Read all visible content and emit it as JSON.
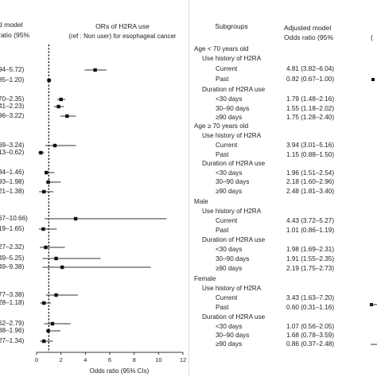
{
  "left_panel": {
    "header_line1": "d model",
    "header_line2": "ratio (95%",
    "ci_fragments": [
      "94–5.72)",
      "85–1.20)",
      "70–2.35)",
      "41–2.23)",
      "96–3.22)",
      "69–3.24)",
      "13–0.62)",
      "84–1.46)",
      "93–1.98)",
      "21–1.38)",
      "67–10.66)",
      "19–1.65)",
      "27–2.32)",
      "49–5.25)",
      "49–9.38)",
      "77–3.38)",
      "28–1.18)",
      "62–2.79)",
      "88–1.96)",
      "27–1.34)"
    ]
  },
  "right_panel": {
    "subgroups_header": "Subgroups",
    "adjusted_header_line1": "Adjusted model",
    "adjusted_header_line2": "Odds ratio (95%",
    "edge_fragment": "(",
    "rows": [
      {
        "label": "Age < 70 years old",
        "or": ""
      },
      {
        "label": "Use history of  H2RA",
        "or": ""
      },
      {
        "label": "Current",
        "or": "4.81 (3.82–6.04)"
      },
      {
        "label": "Past",
        "or": "0.82 (0.67–1.00)"
      },
      {
        "label": "Duration of H2RA use",
        "or": ""
      },
      {
        "label": "<30 days",
        "or": "1.79 (1.48–2.16)"
      },
      {
        "label": "30–90 days",
        "or": "1.55 (1.18–2.02)"
      },
      {
        "label": "≥90 days",
        "or": "1.75 (1.28–2.40)"
      },
      {
        "label": "Age ≥ 70 years old",
        "or": ""
      },
      {
        "label": "Use history of  H2RA",
        "or": ""
      },
      {
        "label": "Current",
        "or": "3.94 (3.01–5.16)"
      },
      {
        "label": "Past",
        "or": "1.15 (0.88–1.50)"
      },
      {
        "label": "Duration of H2RA use",
        "or": ""
      },
      {
        "label": "<30 days",
        "or": "1.96 (1.51–2.54)"
      },
      {
        "label": "30–90 days",
        "or": "2.18 (1.60–2.96)"
      },
      {
        "label": "≥90 days",
        "or": "2.48 (1.81–3.40)"
      },
      {
        "label": "Male",
        "or": ""
      },
      {
        "label": "Use history of  H2RA",
        "or": ""
      },
      {
        "label": "Current",
        "or": "4.43 (3.72–5.27)"
      },
      {
        "label": "Past",
        "or": "1.01 (0.86–1.19)"
      },
      {
        "label": "Duration of H2RA use",
        "or": ""
      },
      {
        "label": "<30 days",
        "or": "1.98 (1.69–2.31)"
      },
      {
        "label": "30–90 days",
        "or": "1.91 (1.55–2.35)"
      },
      {
        "label": "≥90 days",
        "or": "2.19 (1.75–2.73)"
      },
      {
        "label": "Female",
        "or": ""
      },
      {
        "label": "Use history of  H2RA",
        "or": ""
      },
      {
        "label": "Current",
        "or": "3.43 (1.63–7.20)"
      },
      {
        "label": "Past",
        "or": "0.60 (0.31–1.16)"
      },
      {
        "label": "Duration of H2RA use",
        "or": ""
      },
      {
        "label": "<30 days",
        "or": "1.07 (0.56–2.05)"
      },
      {
        "label": "30–90 days",
        "or": "1.68 (0.78–3.59)"
      },
      {
        "label": "≥90 days",
        "or": "0.86 (0.37–2.48)"
      }
    ]
  },
  "chart_data": {
    "type": "forest",
    "title": "ORs of H2RA use",
    "subtitle": "(ref : Non user) for esophageal cancer",
    "xlabel": "Odds ratio (95% CIs)",
    "xlim": [
      0,
      12
    ],
    "x_ticks": [
      "0",
      "2",
      "4",
      "6",
      "8",
      "10",
      "12"
    ],
    "reference_line": 1,
    "points": [
      {
        "or": 4.8,
        "lo": 3.94,
        "hi": 5.72
      },
      {
        "or": 1.02,
        "lo": 0.85,
        "hi": 1.2
      },
      {
        "or": 2.0,
        "lo": 1.7,
        "hi": 2.35
      },
      {
        "or": 1.8,
        "lo": 1.41,
        "hi": 2.23
      },
      {
        "or": 2.5,
        "lo": 1.96,
        "hi": 3.22
      },
      {
        "or": 1.5,
        "lo": 0.69,
        "hi": 3.24
      },
      {
        "or": 0.35,
        "lo": 0.13,
        "hi": 0.62
      },
      {
        "or": 0.8,
        "lo": 0.84,
        "hi": 1.46
      },
      {
        "or": 0.95,
        "lo": 0.93,
        "hi": 1.98
      },
      {
        "or": 0.6,
        "lo": 0.21,
        "hi": 1.38
      },
      {
        "or": 3.2,
        "lo": 0.67,
        "hi": 10.66
      },
      {
        "or": 0.55,
        "lo": 0.19,
        "hi": 1.65
      },
      {
        "or": 0.75,
        "lo": 0.27,
        "hi": 2.32
      },
      {
        "or": 1.6,
        "lo": 0.49,
        "hi": 5.25
      },
      {
        "or": 2.1,
        "lo": 0.49,
        "hi": 9.38
      },
      {
        "or": 1.6,
        "lo": 0.77,
        "hi": 3.38
      },
      {
        "or": 0.6,
        "lo": 0.28,
        "hi": 1.18
      },
      {
        "or": 1.3,
        "lo": 0.62,
        "hi": 2.79
      },
      {
        "or": 0.95,
        "lo": 0.88,
        "hi": 1.96
      },
      {
        "or": 0.6,
        "lo": 0.27,
        "hi": 1.34
      }
    ],
    "right_edge_points": [
      {
        "or": 0.6
      }
    ]
  }
}
